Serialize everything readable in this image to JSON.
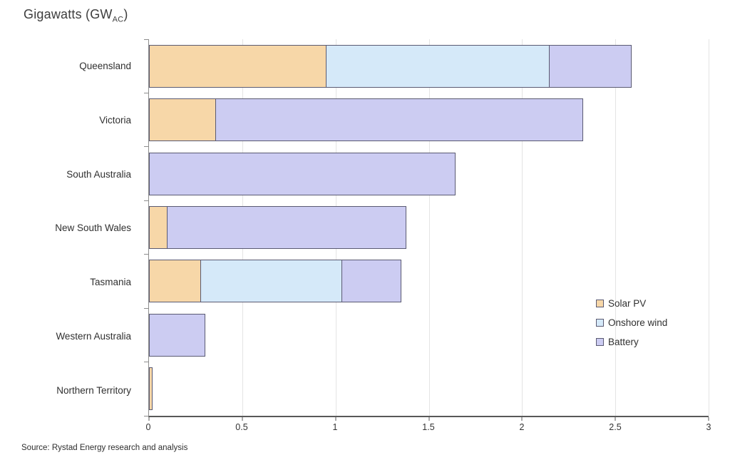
{
  "title": {
    "prefix": "Gigawatts (GW",
    "subscript": "AC",
    "suffix": ")"
  },
  "source": "Source: Rystad Energy research and analysis",
  "colors": {
    "solar_fill": "#F7D7A8",
    "wind_fill": "#D5E9F9",
    "battery_fill": "#CCCCF2",
    "bar_border": "#5A5A72",
    "axis_line": "#595959",
    "y_axis_line": "#8C8C8C",
    "gridline": "#E4E4E4",
    "text": "#303030"
  },
  "chart_data": {
    "type": "bar",
    "orientation": "horizontal",
    "stacked": true,
    "title": "Gigawatts (GW_AC)",
    "xlabel": "",
    "ylabel": "",
    "xlim": [
      0,
      3
    ],
    "xticks": [
      0,
      0.5,
      1,
      1.5,
      2,
      2.5,
      3
    ],
    "xtick_labels": [
      "0",
      "0.5",
      "1",
      "1.5",
      "2",
      "2.5",
      "3"
    ],
    "grid": true,
    "legend_position": "right-middle",
    "categories": [
      "Queensland",
      "Victoria",
      "South Australia",
      "New South Wales",
      "Tasmania",
      "Western Australia",
      "Northern Territory"
    ],
    "series": [
      {
        "name": "Solar PV",
        "color": "#F7D7A8",
        "values": [
          0.95,
          0.36,
          0,
          0.1,
          0.28,
          0,
          0.02
        ]
      },
      {
        "name": "Onshore wind",
        "color": "#D5E9F9",
        "values": [
          1.2,
          0,
          0,
          0,
          0.76,
          0,
          0
        ]
      },
      {
        "name": "Battery",
        "color": "#CCCCF2",
        "values": [
          0.44,
          1.97,
          1.64,
          1.28,
          0.32,
          0.3,
          0
        ]
      }
    ],
    "totals": [
      2.59,
      2.33,
      1.64,
      1.38,
      1.36,
      0.3,
      0.02
    ]
  }
}
